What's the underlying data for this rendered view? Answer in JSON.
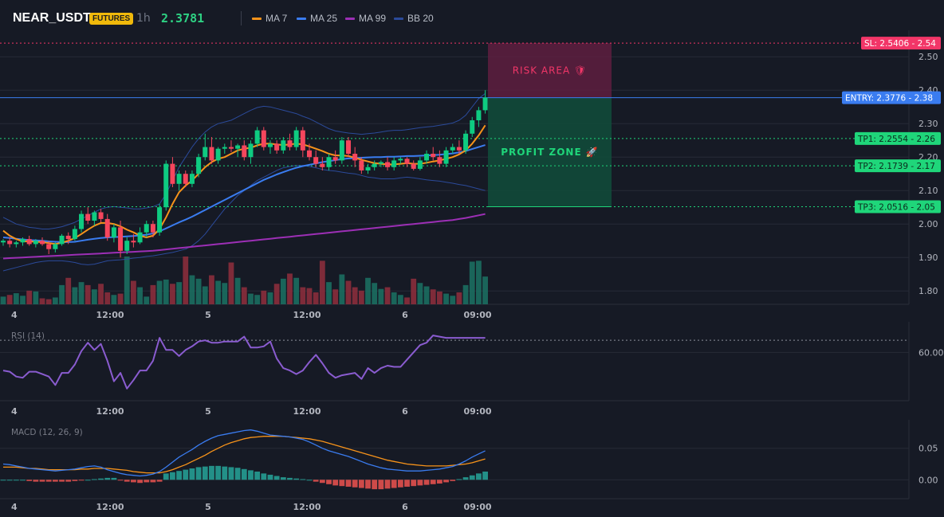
{
  "header": {
    "symbol": "NEAR_USDT",
    "badge": "FUTURES",
    "timeframe": "1h",
    "last_price": "2.3781",
    "legend": [
      {
        "label": "MA 7",
        "color": "#f7931a"
      },
      {
        "label": "MA 25",
        "color": "#3a7cf0"
      },
      {
        "label": "MA 99",
        "color": "#9c2fb5"
      },
      {
        "label": "BB 20",
        "color": "#2b4a9a"
      }
    ]
  },
  "chart_data": [
    {
      "type": "candlestick",
      "title": "NEAR_USDT",
      "ylim": [
        1.76,
        2.56
      ],
      "yticks": [
        "2.50",
        "2.40",
        "2.30",
        "2.20",
        "2.10",
        "2.00",
        "1.90",
        "1.80"
      ],
      "x_ticks": [
        "4",
        "12:00",
        "5",
        "12:00",
        "6",
        "09:00"
      ],
      "candles": [
        [
          1.945,
          1.955,
          1.935,
          1.95
        ],
        [
          1.95,
          1.96,
          1.93,
          1.94
        ],
        [
          1.94,
          1.95,
          1.93,
          1.945
        ],
        [
          1.945,
          1.96,
          1.935,
          1.955
        ],
        [
          1.955,
          1.965,
          1.935,
          1.94
        ],
        [
          1.94,
          1.955,
          1.93,
          1.95
        ],
        [
          1.95,
          1.96,
          1.935,
          1.94
        ],
        [
          1.94,
          1.95,
          1.91,
          1.925
        ],
        [
          1.925,
          1.945,
          1.915,
          1.94
        ],
        [
          1.94,
          1.97,
          1.935,
          1.965
        ],
        [
          1.965,
          1.975,
          1.94,
          1.955
        ],
        [
          1.955,
          1.995,
          1.95,
          1.985
        ],
        [
          1.985,
          2.04,
          1.975,
          2.03
        ],
        [
          2.03,
          2.05,
          2.0,
          2.01
        ],
        [
          2.01,
          2.04,
          1.995,
          2.035
        ],
        [
          2.035,
          2.045,
          2.005,
          2.015
        ],
        [
          2.015,
          2.03,
          1.95,
          1.96
        ],
        [
          1.96,
          2.0,
          1.945,
          1.99
        ],
        [
          1.99,
          2.01,
          1.9,
          1.92
        ],
        [
          1.92,
          1.96,
          1.91,
          1.95
        ],
        [
          1.95,
          1.97,
          1.93,
          1.945
        ],
        [
          1.945,
          1.99,
          1.94,
          1.975
        ],
        [
          1.975,
          2.01,
          1.96,
          2.0
        ],
        [
          2.0,
          2.01,
          1.96,
          1.975
        ],
        [
          1.975,
          2.06,
          1.965,
          2.05
        ],
        [
          2.05,
          2.19,
          2.04,
          2.18
        ],
        [
          2.18,
          2.2,
          2.11,
          2.12
        ],
        [
          2.12,
          2.16,
          2.1,
          2.15
        ],
        [
          2.15,
          2.16,
          2.11,
          2.12
        ],
        [
          2.12,
          2.16,
          2.11,
          2.15
        ],
        [
          2.15,
          2.21,
          2.14,
          2.2
        ],
        [
          2.2,
          2.27,
          2.19,
          2.23
        ],
        [
          2.23,
          2.26,
          2.18,
          2.19
        ],
        [
          2.19,
          2.23,
          2.18,
          2.225
        ],
        [
          2.225,
          2.24,
          2.21,
          2.23
        ],
        [
          2.23,
          2.25,
          2.215,
          2.225
        ],
        [
          2.225,
          2.24,
          2.2,
          2.235
        ],
        [
          2.235,
          2.25,
          2.19,
          2.2
        ],
        [
          2.2,
          2.25,
          2.18,
          2.24
        ],
        [
          2.24,
          2.29,
          2.23,
          2.28
        ],
        [
          2.28,
          2.29,
          2.22,
          2.23
        ],
        [
          2.23,
          2.25,
          2.21,
          2.24
        ],
        [
          2.24,
          2.25,
          2.21,
          2.22
        ],
        [
          2.22,
          2.26,
          2.21,
          2.25
        ],
        [
          2.25,
          2.27,
          2.22,
          2.23
        ],
        [
          2.23,
          2.29,
          2.22,
          2.28
        ],
        [
          2.28,
          2.29,
          2.2,
          2.22
        ],
        [
          2.22,
          2.24,
          2.19,
          2.2
        ],
        [
          2.2,
          2.22,
          2.17,
          2.18
        ],
        [
          2.18,
          2.2,
          2.16,
          2.17
        ],
        [
          2.17,
          2.21,
          2.16,
          2.2
        ],
        [
          2.2,
          2.22,
          2.18,
          2.19
        ],
        [
          2.19,
          2.26,
          2.18,
          2.25
        ],
        [
          2.25,
          2.26,
          2.2,
          2.21
        ],
        [
          2.21,
          2.23,
          2.17,
          2.19
        ],
        [
          2.19,
          2.2,
          2.15,
          2.16
        ],
        [
          2.16,
          2.18,
          2.15,
          2.17
        ],
        [
          2.17,
          2.19,
          2.16,
          2.18
        ],
        [
          2.18,
          2.19,
          2.17,
          2.185
        ],
        [
          2.185,
          2.2,
          2.16,
          2.17
        ],
        [
          2.17,
          2.2,
          2.16,
          2.19
        ],
        [
          2.19,
          2.2,
          2.18,
          2.195
        ],
        [
          2.195,
          2.2,
          2.17,
          2.18
        ],
        [
          2.18,
          2.19,
          2.16,
          2.165
        ],
        [
          2.165,
          2.2,
          2.16,
          2.19
        ],
        [
          2.19,
          2.22,
          2.18,
          2.21
        ],
        [
          2.21,
          2.23,
          2.19,
          2.2
        ],
        [
          2.2,
          2.22,
          2.17,
          2.18
        ],
        [
          2.18,
          2.23,
          2.17,
          2.22
        ],
        [
          2.22,
          2.24,
          2.21,
          2.23
        ],
        [
          2.23,
          2.25,
          2.21,
          2.22
        ],
        [
          2.22,
          2.28,
          2.21,
          2.27
        ],
        [
          2.27,
          2.32,
          2.26,
          2.31
        ],
        [
          2.31,
          2.35,
          2.29,
          2.34
        ],
        [
          2.34,
          2.4,
          2.33,
          2.378
        ]
      ],
      "volume": [
        0.18,
        0.22,
        0.26,
        0.2,
        0.32,
        0.3,
        0.14,
        0.12,
        0.16,
        0.45,
        0.62,
        0.4,
        0.52,
        0.45,
        0.35,
        0.48,
        0.28,
        0.22,
        0.25,
        1.12,
        0.55,
        0.4,
        0.18,
        0.45,
        0.55,
        0.58,
        0.48,
        0.52,
        1.12,
        0.68,
        0.6,
        0.42,
        0.68,
        0.55,
        0.5,
        0.98,
        0.62,
        0.4,
        0.25,
        0.22,
        0.32,
        0.28,
        0.48,
        0.6,
        0.72,
        0.62,
        0.4,
        0.38,
        0.28,
        1.02,
        0.52,
        0.35,
        0.7,
        0.55,
        0.4,
        0.32,
        0.62,
        0.5,
        0.36,
        0.4,
        0.28,
        0.22,
        0.16,
        0.6,
        0.5,
        0.42,
        0.35,
        0.3,
        0.25,
        0.2,
        0.28,
        0.45,
        1.0,
        1.02,
        0.65
      ],
      "ma7": [
        1.98,
        1.965,
        1.955,
        1.948,
        1.948,
        1.947,
        1.946,
        1.943,
        1.94,
        1.944,
        1.95,
        1.958,
        1.97,
        1.983,
        1.995,
        2.003,
        2.003,
        2.0,
        1.993,
        1.983,
        1.975,
        1.965,
        1.96,
        1.965,
        1.985,
        2.02,
        2.06,
        2.095,
        2.115,
        2.13,
        2.15,
        2.17,
        2.185,
        2.195,
        2.2,
        2.21,
        2.22,
        2.225,
        2.228,
        2.235,
        2.24,
        2.24,
        2.238,
        2.236,
        2.238,
        2.24,
        2.238,
        2.232,
        2.225,
        2.218,
        2.21,
        2.205,
        2.205,
        2.203,
        2.198,
        2.192,
        2.187,
        2.182,
        2.18,
        2.178,
        2.178,
        2.18,
        2.182,
        2.18,
        2.18,
        2.183,
        2.187,
        2.19,
        2.195,
        2.2,
        2.208,
        2.22,
        2.24,
        2.265,
        2.295
      ],
      "ma25": [
        1.96,
        1.958,
        1.956,
        1.954,
        1.952,
        1.951,
        1.95,
        1.948,
        1.947,
        1.946,
        1.946,
        1.947,
        1.95,
        1.953,
        1.956,
        1.958,
        1.96,
        1.961,
        1.962,
        1.963,
        1.964,
        1.966,
        1.968,
        1.972,
        1.978,
        1.987,
        1.996,
        2.005,
        2.013,
        2.022,
        2.032,
        2.042,
        2.052,
        2.062,
        2.072,
        2.082,
        2.092,
        2.102,
        2.112,
        2.122,
        2.132,
        2.14,
        2.148,
        2.155,
        2.162,
        2.168,
        2.173,
        2.177,
        2.181,
        2.185,
        2.188,
        2.191,
        2.194,
        2.196,
        2.197,
        2.198,
        2.199,
        2.2,
        2.2,
        2.201,
        2.201,
        2.202,
        2.203,
        2.203,
        2.204,
        2.205,
        2.206,
        2.207,
        2.209,
        2.211,
        2.214,
        2.218,
        2.224,
        2.23,
        2.236
      ],
      "ma99": [
        1.897,
        1.898,
        1.899,
        1.9,
        1.901,
        1.902,
        1.903,
        1.904,
        1.905,
        1.906,
        1.907,
        1.908,
        1.909,
        1.91,
        1.911,
        1.912,
        1.913,
        1.914,
        1.915,
        1.916,
        1.917,
        1.918,
        1.919,
        1.92,
        1.922,
        1.924,
        1.926,
        1.928,
        1.93,
        1.932,
        1.934,
        1.936,
        1.938,
        1.94,
        1.942,
        1.944,
        1.946,
        1.948,
        1.95,
        1.952,
        1.954,
        1.956,
        1.958,
        1.96,
        1.962,
        1.964,
        1.966,
        1.968,
        1.97,
        1.972,
        1.974,
        1.976,
        1.978,
        1.98,
        1.982,
        1.984,
        1.986,
        1.988,
        1.99,
        1.992,
        1.994,
        1.996,
        1.998,
        2.0,
        2.002,
        2.004,
        2.006,
        2.008,
        2.01,
        2.012,
        2.015,
        2.018,
        2.022,
        2.026,
        2.03
      ],
      "bb_upper": [
        2.02,
        2.01,
        2.0,
        1.995,
        1.99,
        1.988,
        1.985,
        1.985,
        1.988,
        1.992,
        1.998,
        2.005,
        2.015,
        2.025,
        2.035,
        2.045,
        2.05,
        2.052,
        2.05,
        2.048,
        2.045,
        2.045,
        2.048,
        2.052,
        2.06,
        2.09,
        2.13,
        2.17,
        2.2,
        2.23,
        2.255,
        2.275,
        2.29,
        2.3,
        2.305,
        2.31,
        2.32,
        2.33,
        2.34,
        2.348,
        2.352,
        2.35,
        2.345,
        2.34,
        2.335,
        2.33,
        2.322,
        2.315,
        2.305,
        2.295,
        2.285,
        2.278,
        2.275,
        2.272,
        2.27,
        2.268,
        2.27,
        2.272,
        2.275,
        2.278,
        2.28,
        2.28,
        2.282,
        2.285,
        2.288,
        2.29,
        2.292,
        2.295,
        2.298,
        2.302,
        2.31,
        2.325,
        2.35,
        2.375,
        2.39
      ],
      "bb_lower": [
        1.86,
        1.865,
        1.87,
        1.875,
        1.88,
        1.885,
        1.888,
        1.89,
        1.89,
        1.89,
        1.888,
        1.885,
        1.88,
        1.878,
        1.88,
        1.885,
        1.89,
        1.892,
        1.893,
        1.895,
        1.898,
        1.9,
        1.903,
        1.905,
        1.908,
        1.912,
        1.915,
        1.92,
        1.925,
        1.935,
        1.95,
        1.97,
        1.995,
        2.02,
        2.045,
        2.065,
        2.085,
        2.1,
        2.115,
        2.13,
        2.14,
        2.15,
        2.16,
        2.168,
        2.172,
        2.175,
        2.175,
        2.172,
        2.168,
        2.163,
        2.16,
        2.158,
        2.155,
        2.152,
        2.15,
        2.145,
        2.14,
        2.138,
        2.135,
        2.135,
        2.135,
        2.138,
        2.14,
        2.138,
        2.135,
        2.132,
        2.13,
        2.128,
        2.125,
        2.122,
        2.118,
        2.115,
        2.11,
        2.105,
        2.1
      ],
      "annotations": {
        "sl": {
          "value": 2.5406,
          "label": "SL: 2.5406 - 2.54",
          "color": "#f23668"
        },
        "entry": {
          "value": 2.3776,
          "label": "ENTRY: 2.3776 - 2.38",
          "color": "#3a7cf0"
        },
        "tp": [
          {
            "value": 2.2554,
            "label": "TP1: 2.2554 - 2.26",
            "color": "#1fd67a"
          },
          {
            "value": 2.1739,
            "label": "TP2: 2.1739 - 2.17",
            "color": "#1fd67a"
          },
          {
            "value": 2.0516,
            "label": "TP3: 2.0516 - 2.05",
            "color": "#1fd67a"
          }
        ],
        "risk_label": "RISK AREA 🛡",
        "profit_label": "PROFIT ZONE 🚀"
      }
    },
    {
      "type": "line",
      "title": "RSI (14)",
      "ylim": [
        20,
        80
      ],
      "yticks": [
        "60.00"
      ],
      "x_ticks": [
        "4",
        "12:00",
        "5",
        "12:00",
        "6",
        "09:00"
      ],
      "overbought": 70,
      "values": [
        45,
        44,
        40,
        39,
        44,
        44,
        42,
        40,
        33,
        43,
        43,
        50,
        61,
        68,
        62,
        67,
        53,
        36,
        43,
        30,
        37,
        45,
        45,
        53,
        72,
        62,
        62,
        57,
        62,
        65,
        69,
        70,
        68,
        68,
        69,
        69,
        69,
        73,
        64,
        64,
        65,
        69,
        55,
        47,
        45,
        42,
        45,
        52,
        58,
        51,
        43,
        39,
        41,
        42,
        43,
        38,
        47,
        43,
        47,
        49,
        48,
        48,
        54,
        60,
        66,
        68,
        74,
        73,
        72,
        72,
        72,
        72,
        72,
        72,
        72
      ],
      "color": "#8a5cd0"
    },
    {
      "type": "line",
      "title": "MACD (12, 26, 9)",
      "ylim": [
        -0.03,
        0.085
      ],
      "yticks": [
        "0.05",
        "0.00"
      ],
      "x_ticks": [
        "4",
        "12:00",
        "5",
        "12:00",
        "6",
        "09:00"
      ],
      "macd": [
        0.025,
        0.024,
        0.022,
        0.02,
        0.018,
        0.017,
        0.016,
        0.015,
        0.014,
        0.015,
        0.016,
        0.017,
        0.019,
        0.021,
        0.022,
        0.02,
        0.016,
        0.013,
        0.01,
        0.008,
        0.007,
        0.006,
        0.007,
        0.009,
        0.013,
        0.02,
        0.028,
        0.036,
        0.042,
        0.048,
        0.055,
        0.061,
        0.066,
        0.07,
        0.072,
        0.074,
        0.076,
        0.078,
        0.079,
        0.077,
        0.074,
        0.071,
        0.07,
        0.069,
        0.068,
        0.066,
        0.064,
        0.06,
        0.055,
        0.05,
        0.046,
        0.043,
        0.04,
        0.037,
        0.033,
        0.029,
        0.025,
        0.022,
        0.019,
        0.017,
        0.016,
        0.015,
        0.014,
        0.014,
        0.014,
        0.015,
        0.016,
        0.017,
        0.019,
        0.021,
        0.025,
        0.03,
        0.036,
        0.041,
        0.046
      ],
      "signal": [
        0.02,
        0.02,
        0.02,
        0.019,
        0.018,
        0.018,
        0.017,
        0.016,
        0.016,
        0.016,
        0.016,
        0.016,
        0.017,
        0.017,
        0.018,
        0.018,
        0.018,
        0.017,
        0.016,
        0.015,
        0.013,
        0.012,
        0.011,
        0.011,
        0.011,
        0.013,
        0.016,
        0.02,
        0.024,
        0.029,
        0.034,
        0.039,
        0.045,
        0.05,
        0.055,
        0.059,
        0.062,
        0.065,
        0.067,
        0.068,
        0.069,
        0.069,
        0.069,
        0.069,
        0.068,
        0.067,
        0.066,
        0.065,
        0.063,
        0.061,
        0.058,
        0.055,
        0.052,
        0.049,
        0.046,
        0.043,
        0.04,
        0.037,
        0.034,
        0.031,
        0.029,
        0.027,
        0.025,
        0.024,
        0.023,
        0.022,
        0.022,
        0.022,
        0.022,
        0.023,
        0.024,
        0.025,
        0.027,
        0.03,
        0.033
      ],
      "histogram": [
        0.0,
        0.0,
        0.0,
        0.0,
        -0.002,
        -0.003,
        -0.003,
        -0.003,
        -0.003,
        -0.003,
        -0.003,
        -0.002,
        -0.001,
        0.0,
        0.001,
        0.002,
        0.003,
        0.003,
        -0.001,
        -0.003,
        -0.004,
        -0.005,
        -0.004,
        -0.004,
        -0.003,
        0.01,
        0.012,
        0.014,
        0.016,
        0.018,
        0.02,
        0.021,
        0.022,
        0.022,
        0.021,
        0.02,
        0.019,
        0.017,
        0.015,
        0.013,
        0.01,
        0.008,
        0.006,
        0.004,
        0.003,
        0.002,
        0.001,
        0.0,
        -0.003,
        -0.005,
        -0.007,
        -0.009,
        -0.01,
        -0.011,
        -0.012,
        -0.013,
        -0.014,
        -0.015,
        -0.015,
        -0.014,
        -0.013,
        -0.012,
        -0.011,
        -0.01,
        -0.009,
        -0.008,
        -0.007,
        -0.006,
        -0.004,
        -0.002,
        0.001,
        0.004,
        0.007,
        0.01,
        0.013
      ],
      "macd_color": "#3a7cf0",
      "signal_color": "#f7931a"
    }
  ]
}
